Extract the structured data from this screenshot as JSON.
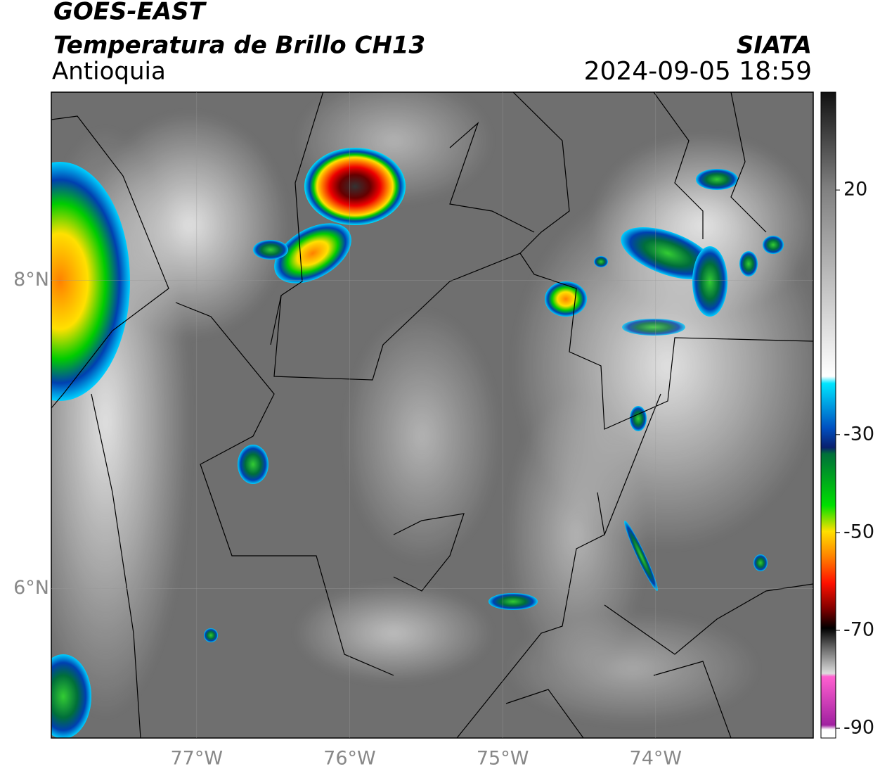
{
  "header": {
    "title": "GOES-EAST",
    "subtitle": "Temperatura de Brillo CH13",
    "region": "Antioquia",
    "source": "SIATA",
    "timestamp": "2024-09-05 18:59"
  },
  "map": {
    "lon_lim": [
      -77.95,
      -72.97
    ],
    "lat_lim": [
      5.03,
      9.22
    ],
    "lon_ticks": [
      {
        "value": -77,
        "label": "77°W"
      },
      {
        "value": -76,
        "label": "76°W"
      },
      {
        "value": -75,
        "label": "75°W"
      },
      {
        "value": -74,
        "label": "74°W"
      }
    ],
    "lat_ticks": [
      {
        "value": 8,
        "label": "8°N"
      },
      {
        "value": 6,
        "label": "6°N"
      }
    ]
  },
  "colorbar": {
    "lim": [
      -92,
      40
    ],
    "ticks": [
      20,
      -30,
      -50,
      -70,
      -90
    ]
  }
}
